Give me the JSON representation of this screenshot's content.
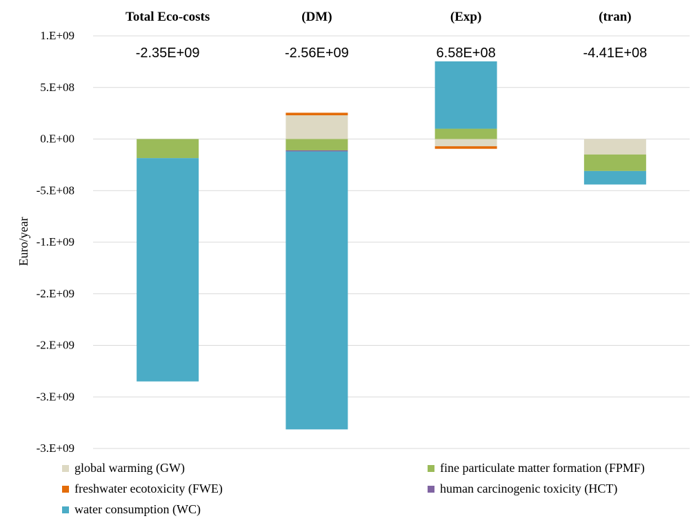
{
  "chart_data": {
    "type": "bar",
    "stacked": true,
    "ylabel": "Euro/year",
    "categories": [
      "Total Eco-costs",
      "(DM)",
      "(Exp)",
      "(tran)"
    ],
    "totals": [
      "-2.35E+09",
      "-2.56E+09",
      "6.58E+08",
      "-4.41E+08"
    ],
    "ylim": [
      -3000000000,
      1000000000
    ],
    "ytick_values": [
      1000000000,
      500000000,
      0,
      -500000000,
      -1000000000,
      -1500000000,
      -2000000000,
      -2500000000,
      -3000000000
    ],
    "ytick_labels": [
      "1.E+09",
      "5.E+08",
      "0.E+00",
      "-5.E+08",
      "-1.E+09",
      "-2.E+09",
      "-2.E+09",
      "-3.E+09",
      "-3.E+09"
    ],
    "grid": true,
    "legend_position": "bottom",
    "series": [
      {
        "name": "global warming (GW)",
        "color": "#ddd9c3",
        "values": [
          0,
          230000000,
          -70000000,
          -150000000
        ]
      },
      {
        "name": "fine particulate matter formation (FPMF)",
        "color": "#9bbb59",
        "values": [
          -185000000,
          -110000000,
          100000000,
          -160000000
        ]
      },
      {
        "name": "freshwater ecotoxicity (FWE)",
        "color": "#e36c09",
        "values": [
          0,
          25000000,
          -25000000,
          0
        ]
      },
      {
        "name": "human carcinogenic toxicity (HCT)",
        "color": "#8064a2",
        "values": [
          0,
          -10000000,
          0,
          0
        ]
      },
      {
        "name": "water consumption (WC)",
        "color": "#4bacc6",
        "values": [
          -2165000000,
          -2695000000,
          653000000,
          -131000000
        ]
      }
    ]
  }
}
